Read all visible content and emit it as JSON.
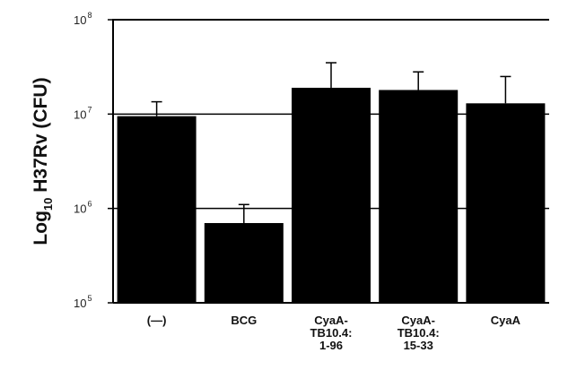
{
  "chart_data": {
    "type": "bar",
    "title": "",
    "xlabel": "",
    "ylabel": {
      "prefix": "Log",
      "subscript": "10",
      "suffix": " H37Rv (CFU)"
    },
    "yscale": "log",
    "ylim": [
      100000,
      100000000
    ],
    "yticks": [
      {
        "base": "10",
        "exp": "5",
        "value": 100000
      },
      {
        "base": "10",
        "exp": "6",
        "value": 1000000
      },
      {
        "base": "10",
        "exp": "7",
        "value": 10000000
      },
      {
        "base": "10",
        "exp": "8",
        "value": 100000000
      }
    ],
    "gridlines": [
      1000000,
      10000000
    ],
    "categories": [
      [
        "(—)"
      ],
      [
        "BCG"
      ],
      [
        "CyaA-",
        "TB10.4:",
        "1-96"
      ],
      [
        "CyaA-",
        "TB10.4:",
        "15-33"
      ],
      [
        "CyaA"
      ]
    ],
    "values": [
      9500000,
      700000,
      19000000,
      18000000,
      13000000
    ],
    "error_upper": [
      13500000,
      1100000,
      35000000,
      28000000,
      25000000
    ],
    "colors": {
      "bar": "#000000",
      "axis": "#000000",
      "grid": "#000000"
    },
    "legend": "none"
  }
}
